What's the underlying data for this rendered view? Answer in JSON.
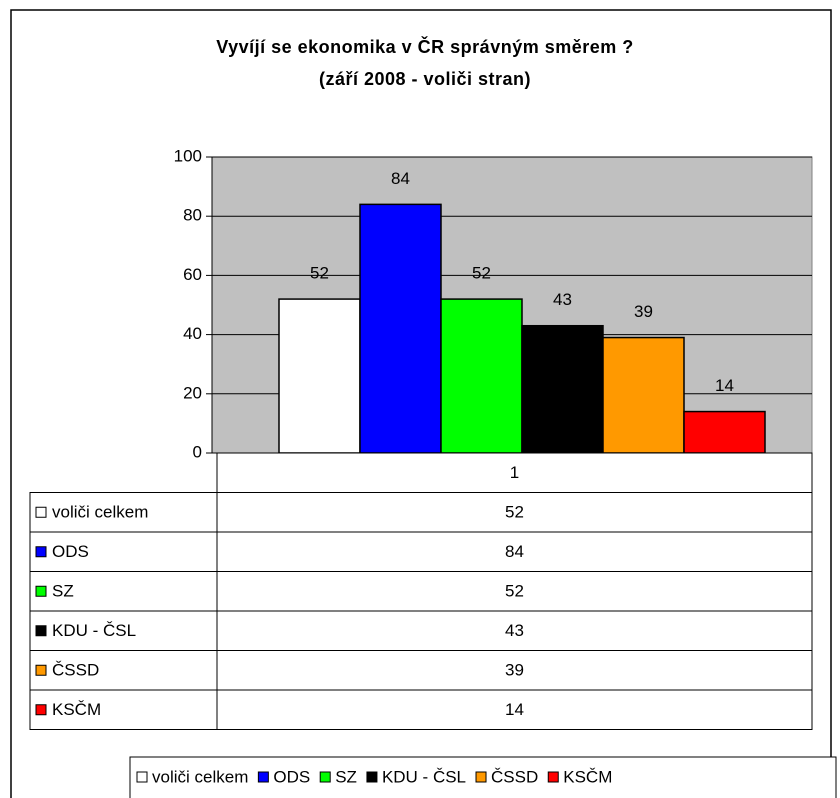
{
  "chart_data": {
    "type": "bar",
    "title": "Vyvíjí se ekonomika v ČR správným směrem ?",
    "subtitle": "(září 2008 - voliči stran)",
    "categories": [
      "1"
    ],
    "series": [
      {
        "name": "voliči celkem",
        "color": "#ffffff",
        "values": [
          52
        ]
      },
      {
        "name": "ODS",
        "color": "#0000ff",
        "values": [
          84
        ]
      },
      {
        "name": "SZ",
        "color": "#00ff00",
        "values": [
          52
        ]
      },
      {
        "name": "KDU - ČSL",
        "color": "#000000",
        "values": [
          43
        ]
      },
      {
        "name": "ČSSD",
        "color": "#ff9900",
        "values": [
          39
        ]
      },
      {
        "name": "KSČM",
        "color": "#ff0000",
        "values": [
          14
        ]
      }
    ],
    "ylim": [
      0,
      100
    ],
    "yticks": [
      0,
      20,
      40,
      60,
      80,
      100
    ],
    "grid": true,
    "legend": "bottom"
  }
}
